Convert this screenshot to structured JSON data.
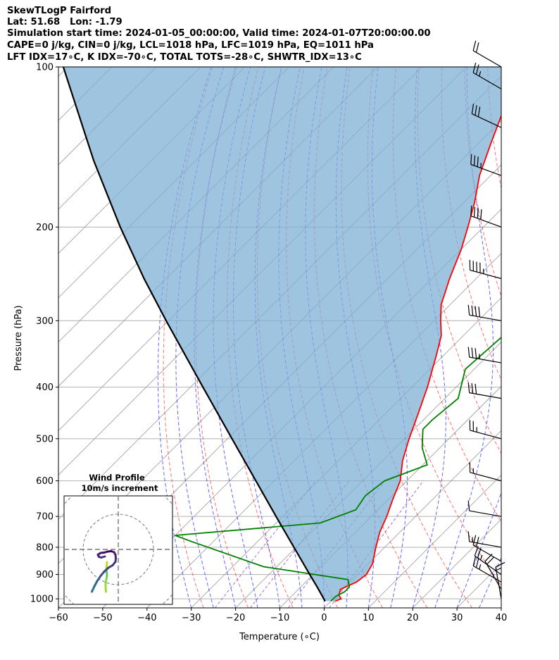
{
  "header": {
    "line1": "SkewTLogP Fairford",
    "line2": "Lat: 51.68   Lon: -1.79",
    "line3": "Simulation start time: 2024-01-05_00:00:00, Valid time: 2024-01-07T20:00:00.00",
    "line4": "CAPE=0 j/kg, CIN=0 j/kg, LCL=1018 hPa, LFC=1019 hPa, EQ=1011 hPa",
    "line5": "LFT IDX=17∘C, K IDX=-70∘C, TOTAL TOTS=-28∘C, SHWTR_IDX=13∘C"
  },
  "colors": {
    "temperature": "#ff0000",
    "dewpoint": "#008000",
    "parcel": "#000000",
    "cape_fill": "#7fb0d5",
    "dry_adiabat": "#ff0000",
    "moist_adiabat": "#0000ff",
    "mixing_ratio": "#7b2fbe",
    "isotherm": "#888888"
  },
  "chart_data": {
    "type": "line",
    "subtype": "skew-T log-P",
    "xlabel": "Temperature (∘C)",
    "ylabel": "Pressure (hPa)",
    "xlim": [
      -60,
      40
    ],
    "ylim": [
      1040,
      100
    ],
    "y_scale": "log",
    "grid": true,
    "x_ticks": [
      "−60",
      "−50",
      "−40",
      "−30",
      "−20",
      "−10",
      "0",
      "10",
      "20",
      "30",
      "40"
    ],
    "y_ticks": [
      "100",
      "200",
      "300",
      "400",
      "500",
      "600",
      "700",
      "800",
      "900",
      "1000"
    ],
    "series": [
      {
        "key": "temperature",
        "pressure": [
          1010,
          1000,
          985,
          960,
          930,
          900,
          860,
          800,
          750,
          700,
          650,
          600,
          550,
          500,
          450,
          400,
          350,
          320,
          300,
          280,
          250,
          220,
          200,
          180,
          160,
          140,
          120,
          100
        ],
        "temp": [
          1,
          1.8,
          0.5,
          -0.5,
          1.5,
          2,
          1,
          -2,
          -4.5,
          -6.5,
          -9,
          -11.5,
          -15.5,
          -19,
          -22.5,
          -26.5,
          -31.5,
          -35,
          -38.5,
          -42,
          -46,
          -50,
          -53.5,
          -57.5,
          -62.5,
          -67,
          -72,
          -77
        ]
      },
      {
        "key": "dewpoint",
        "pressure": [
          1010,
          990,
          970,
          950,
          920,
          870,
          780,
          760,
          720,
          680,
          640,
          600,
          560,
          520,
          480,
          460,
          420,
          370,
          320,
          280,
          230,
          200,
          180,
          165,
          150,
          130,
          110,
          100
        ],
        "temp": [
          0,
          0,
          1,
          1,
          -1,
          -23,
          -45,
          -50,
          -20,
          -15,
          -16,
          -15,
          -9,
          -14,
          -18,
          -18,
          -17,
          -22,
          -21,
          -20,
          -23,
          -24,
          -28,
          -33,
          -34,
          -35,
          -37,
          -38
        ]
      },
      {
        "key": "parcel",
        "pressure": [
          1010,
          950,
          900,
          800,
          700,
          600,
          500,
          400,
          300,
          250,
          200,
          150,
          100
        ],
        "temp": [
          -1.3,
          -6.3,
          -10.8,
          -20.5,
          -31.5,
          -44.1,
          -59,
          -77.2,
          -100.5,
          -115,
          -132,
          -153,
          -181
        ]
      }
    ],
    "wind_barbs": {
      "pressure": [
        1000,
        960,
        930,
        900,
        850,
        800,
        700,
        600,
        500,
        420,
        360,
        300,
        250,
        200,
        160,
        130,
        110,
        100
      ],
      "direction_deg": [
        350,
        330,
        300,
        305,
        300,
        280,
        280,
        285,
        285,
        280,
        280,
        280,
        285,
        290,
        290,
        295,
        300,
        300
      ],
      "speed_kt": [
        15,
        20,
        25,
        25,
        20,
        15,
        10,
        15,
        25,
        30,
        35,
        40,
        45,
        40,
        35,
        30,
        25,
        20
      ]
    },
    "hodograph": {
      "title": "Wind Profile",
      "subtitle": "10m/s increment",
      "u": [
        -3.5,
        -3.6,
        -3.6,
        -3.4,
        -3.2,
        -3.3,
        -3.4,
        -3.3,
        -3.2
      ],
      "v": [
        -12,
        -10.5,
        -9.5,
        -8.5,
        -7.5,
        -6.5,
        -5.5,
        -4.5,
        -3.6
      ],
      "u2": [
        -7.5,
        -6.8,
        -6,
        -5,
        -4,
        -2.8,
        -1.6,
        -0.8,
        -0.7,
        -0.8,
        -1.2,
        -2,
        -3,
        -4,
        -5,
        -5.8,
        -5.5,
        -4.8,
        -3.8
      ],
      "v2": [
        -12,
        -10.5,
        -9,
        -7.5,
        -6.3,
        -5.2,
        -4.5,
        -3.5,
        -2.5,
        -1.5,
        -0.8,
        -0.5,
        -0.6,
        -0.9,
        -1.0,
        -1.5,
        -2.1,
        -2.3,
        -2.0
      ]
    }
  }
}
